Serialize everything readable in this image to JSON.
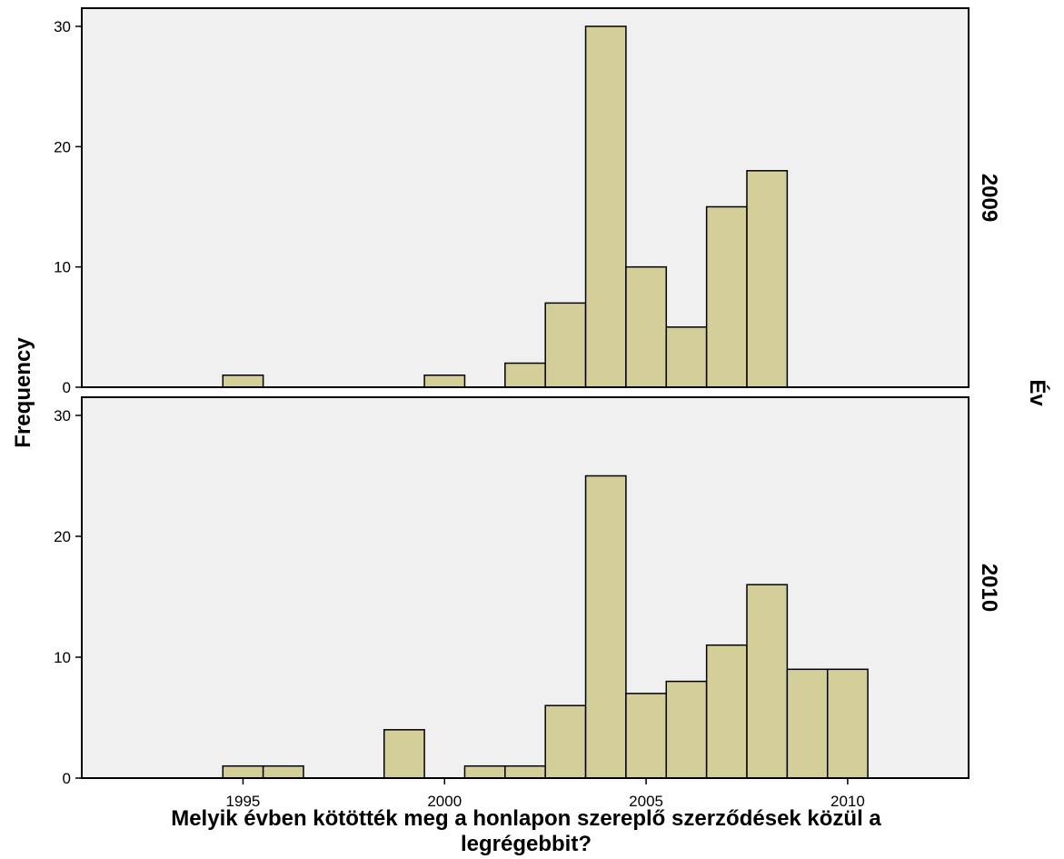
{
  "chart_data": {
    "type": "bar",
    "subtype": "histogram-panels",
    "xlabel": "Melyik évben kötötték meg a honlapon szereplő szerződések közül a legrégebbit?",
    "xlabel_lines": [
      "Melyik évben kötötték meg a honlapon szereplő szerződések közül a",
      "legrégebbit?"
    ],
    "ylabel": "Frequency",
    "panel_axis_label": "Év",
    "xlim": [
      1991,
      2013
    ],
    "ylim": [
      0,
      30
    ],
    "x_ticks": [
      1995,
      2000,
      2005,
      2010
    ],
    "y_ticks": [
      0,
      10,
      20,
      30
    ],
    "bin_width": 1,
    "grid": false,
    "colors": {
      "bar_fill": "#d4cf98",
      "bar_stroke": "#000000",
      "panel_bg": "#f0f0f0"
    },
    "panels": [
      {
        "label": "2009",
        "bins": [
          {
            "x": 1995,
            "value": 1
          },
          {
            "x": 2000,
            "value": 1
          },
          {
            "x": 2002,
            "value": 2
          },
          {
            "x": 2003,
            "value": 7
          },
          {
            "x": 2004,
            "value": 30
          },
          {
            "x": 2005,
            "value": 10
          },
          {
            "x": 2006,
            "value": 5
          },
          {
            "x": 2007,
            "value": 15
          },
          {
            "x": 2008,
            "value": 18
          }
        ]
      },
      {
        "label": "2010",
        "bins": [
          {
            "x": 1995,
            "value": 1
          },
          {
            "x": 1996,
            "value": 1
          },
          {
            "x": 1999,
            "value": 4
          },
          {
            "x": 2001,
            "value": 1
          },
          {
            "x": 2002,
            "value": 1
          },
          {
            "x": 2003,
            "value": 6
          },
          {
            "x": 2004,
            "value": 25
          },
          {
            "x": 2005,
            "value": 7
          },
          {
            "x": 2006,
            "value": 8
          },
          {
            "x": 2007,
            "value": 11
          },
          {
            "x": 2008,
            "value": 16
          },
          {
            "x": 2009,
            "value": 9
          },
          {
            "x": 2010,
            "value": 9
          }
        ]
      }
    ]
  }
}
